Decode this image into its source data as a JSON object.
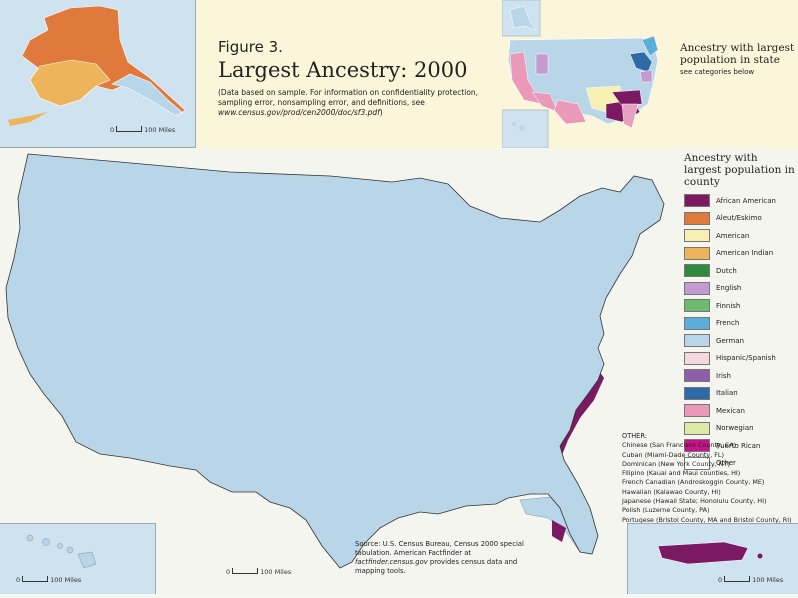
{
  "figure": {
    "label": "Figure 3.",
    "title": "Largest Ancestry: 2000",
    "note_prefix": "(Data based on sample. For information on confidentiality protection, sampling error, nonsampling error, and definitions, see ",
    "note_link": "www.census.gov/prod/cen2000/doc/sf3.pdf",
    "note_suffix": ")"
  },
  "state_map": {
    "heading": "Ancestry with largest population in state",
    "subheading": "see categories below"
  },
  "legend": {
    "title": "Ancestry with largest population in county",
    "items": [
      {
        "label": "African American",
        "color": "#7b1a63"
      },
      {
        "label": "Aleut/Eskimo",
        "color": "#e07a3c"
      },
      {
        "label": "American",
        "color": "#f6f0b2"
      },
      {
        "label": "American Indian",
        "color": "#eeb45c"
      },
      {
        "label": "Dutch",
        "color": "#2e8a3c"
      },
      {
        "label": "English",
        "color": "#c39bd0"
      },
      {
        "label": "Finnish",
        "color": "#6cbb6f"
      },
      {
        "label": "French",
        "color": "#5aaed9"
      },
      {
        "label": "German",
        "color": "#b9d5e8"
      },
      {
        "label": "Hispanic/Spanish",
        "color": "#f3d9dd"
      },
      {
        "label": "Irish",
        "color": "#8c5fa8"
      },
      {
        "label": "Italian",
        "color": "#2f6aa8"
      },
      {
        "label": "Mexican",
        "color": "#ea9ab8"
      },
      {
        "label": "Norwegian",
        "color": "#dde9a6"
      },
      {
        "label": "Puerto Rican",
        "color": "#c8128a"
      },
      {
        "label": "Other",
        "color": "#ffffff"
      }
    ]
  },
  "other": {
    "heading": "OTHER:",
    "items": [
      "Chinese (San Francisco County, CA)",
      "Cuban (Miami-Dade County, FL)",
      "Dominican (New York County, NY)",
      "Filipino (Kauai and Maui counties, HI)",
      "French Canadian (Androskoggin County, ME)",
      "Hawaiian (Kalawao County, HI)",
      "Japanese (Hawaii State; Honolulu County, HI)",
      "Polish (Luzerne County, PA)",
      "Portugese (Bristol County, MA and Bristol County, RI)"
    ]
  },
  "source": {
    "text1": "Source: U.S. Census Bureau, Census 2000 special tabulation. American Factfinder at ",
    "link": "factfinder.census.gov",
    "text2": " provides census data and mapping tools."
  },
  "scales": {
    "alaska": {
      "zero": "0",
      "label": "100 Miles"
    },
    "hawaii": {
      "zero": "0",
      "label": "100 Miles"
    },
    "conus": {
      "zero": "0",
      "label": "100 Miles"
    },
    "puerto_rico": {
      "zero": "0",
      "label": "100 Miles"
    }
  }
}
